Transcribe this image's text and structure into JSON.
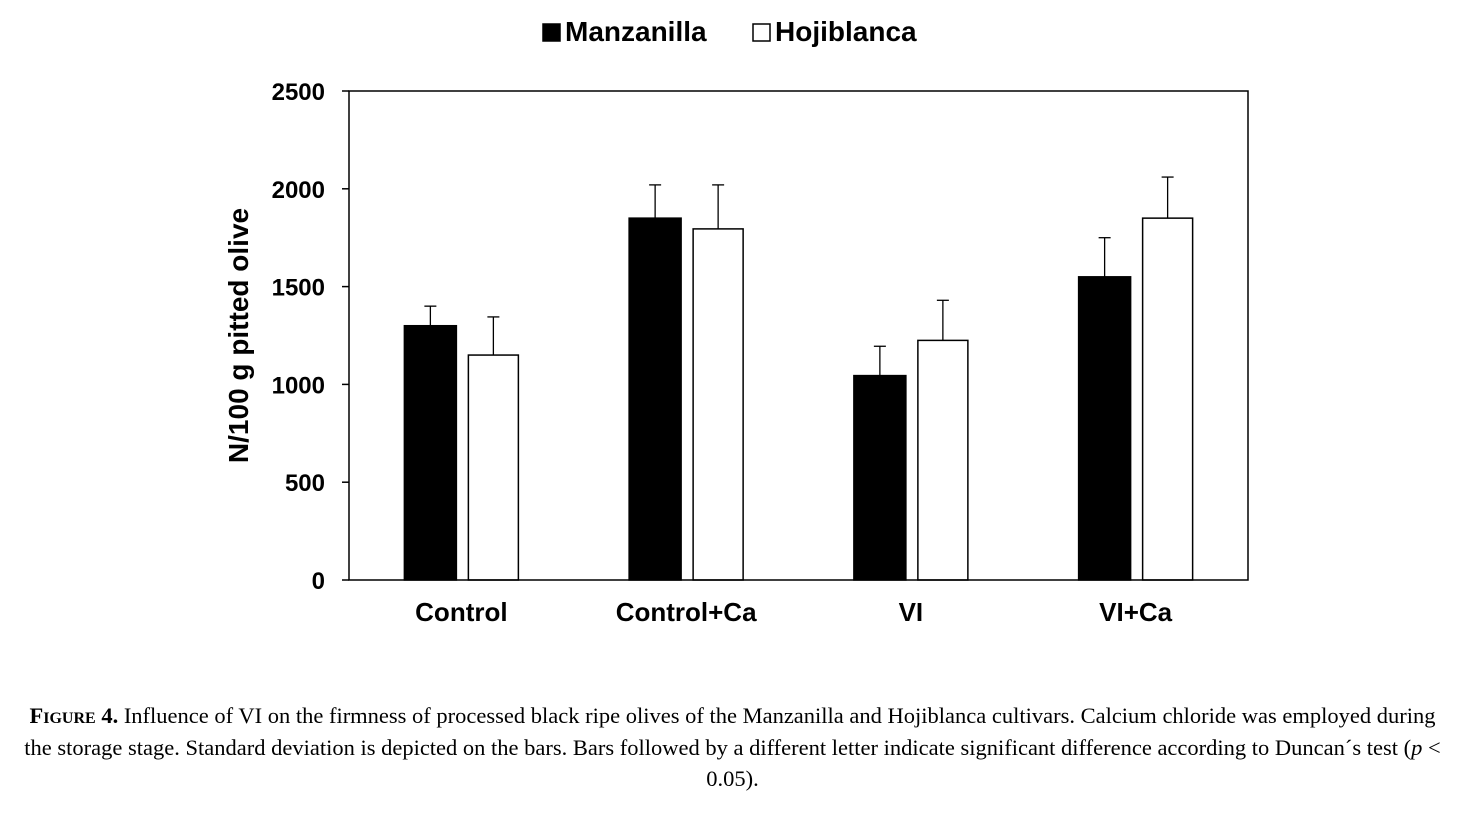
{
  "chart_data": {
    "type": "bar",
    "categories": [
      "Control",
      "Control+Ca",
      "VI",
      "VI+Ca"
    ],
    "series": [
      {
        "name": "Manzanilla",
        "color": "#000000",
        "values": [
          1300,
          1850,
          1045,
          1550
        ],
        "errors": [
          100,
          170,
          150,
          200
        ]
      },
      {
        "name": "Hojiblanca",
        "color": "#ffffff",
        "values": [
          1150,
          1795,
          1225,
          1850
        ],
        "errors": [
          195,
          225,
          205,
          210
        ]
      }
    ],
    "ylabel": "N/100 g pitted olive",
    "xlabel": "",
    "ylim": [
      0,
      2500
    ],
    "yticks": [
      0,
      500,
      1000,
      1500,
      2000,
      2500
    ],
    "grid": false,
    "legend_position": "top-center",
    "legend_markers": [
      "■",
      "□"
    ]
  },
  "caption": {
    "figure_label": "Figure",
    "figure_number": "4.",
    "text_before_p": "Influence of VI on the firmness of processed black ripe olives of the Manzanilla and Hojiblanca cultivars. Calcium chloride was employed during the storage stage. Standard deviation is depicted on the bars. Bars followed by a different letter indicate significant difference according to Duncan´s test (",
    "p_symbol": "p",
    "text_after_p": " < 0.05)."
  }
}
